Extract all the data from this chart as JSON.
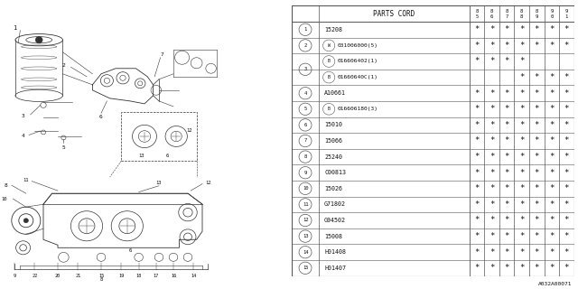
{
  "diagram_label": "A032A00071",
  "table_header": "PARTS CORD",
  "year_cols": [
    "85",
    "86",
    "87",
    "88",
    "89",
    "90",
    "91"
  ],
  "rows": [
    {
      "num": "1",
      "num_show": true,
      "prefix": "",
      "code": "15208",
      "stars": [
        1,
        1,
        1,
        1,
        1,
        1,
        1
      ]
    },
    {
      "num": "2",
      "num_show": true,
      "prefix": "W",
      "code": "031006000(5)",
      "stars": [
        1,
        1,
        1,
        1,
        1,
        1,
        1
      ]
    },
    {
      "num": "3a",
      "num_show": true,
      "prefix": "B",
      "code": "016606402(1)",
      "stars": [
        1,
        1,
        1,
        1,
        0,
        0,
        0
      ],
      "row3_top": true
    },
    {
      "num": "3b",
      "num_show": false,
      "prefix": "B",
      "code": "01660640C(1)",
      "stars": [
        0,
        0,
        0,
        1,
        1,
        1,
        1
      ],
      "row3_bot": true
    },
    {
      "num": "4",
      "num_show": true,
      "prefix": "",
      "code": "A10661",
      "stars": [
        1,
        1,
        1,
        1,
        1,
        1,
        1
      ]
    },
    {
      "num": "5",
      "num_show": true,
      "prefix": "B",
      "code": "016606180(3)",
      "stars": [
        1,
        1,
        1,
        1,
        1,
        1,
        1
      ]
    },
    {
      "num": "6",
      "num_show": true,
      "prefix": "",
      "code": "15010",
      "stars": [
        1,
        1,
        1,
        1,
        1,
        1,
        1
      ]
    },
    {
      "num": "7",
      "num_show": true,
      "prefix": "",
      "code": "15066",
      "stars": [
        1,
        1,
        1,
        1,
        1,
        1,
        1
      ]
    },
    {
      "num": "8",
      "num_show": true,
      "prefix": "",
      "code": "25240",
      "stars": [
        1,
        1,
        1,
        1,
        1,
        1,
        1
      ]
    },
    {
      "num": "9",
      "num_show": true,
      "prefix": "",
      "code": "C00813",
      "stars": [
        1,
        1,
        1,
        1,
        1,
        1,
        1
      ]
    },
    {
      "num": "10",
      "num_show": true,
      "prefix": "",
      "code": "15026",
      "stars": [
        1,
        1,
        1,
        1,
        1,
        1,
        1
      ]
    },
    {
      "num": "11",
      "num_show": true,
      "prefix": "",
      "code": "G71802",
      "stars": [
        1,
        1,
        1,
        1,
        1,
        1,
        1
      ]
    },
    {
      "num": "12",
      "num_show": true,
      "prefix": "",
      "code": "G94502",
      "stars": [
        1,
        1,
        1,
        1,
        1,
        1,
        1
      ]
    },
    {
      "num": "13",
      "num_show": true,
      "prefix": "",
      "code": "15008",
      "stars": [
        1,
        1,
        1,
        1,
        1,
        1,
        1
      ]
    },
    {
      "num": "14",
      "num_show": true,
      "prefix": "",
      "code": "H01408",
      "stars": [
        1,
        1,
        1,
        1,
        1,
        1,
        1
      ]
    },
    {
      "num": "15",
      "num_show": true,
      "prefix": "",
      "code": "H01407",
      "stars": [
        1,
        1,
        1,
        1,
        1,
        1,
        1
      ]
    }
  ],
  "bg_color": "#ffffff",
  "line_color": "#333333",
  "text_color": "#111111"
}
